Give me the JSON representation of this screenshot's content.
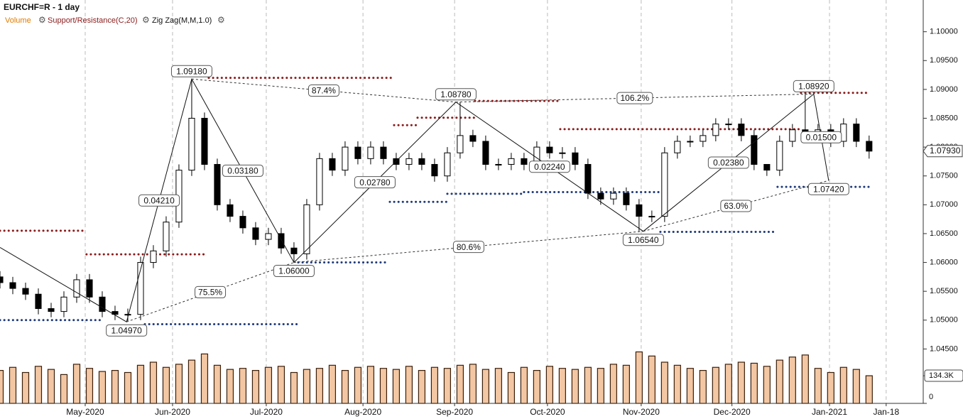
{
  "chart_data": {
    "type": "candlestick",
    "title": "EURCHF=R - 1 day",
    "indicators": [
      "Volume",
      "Support/Resistance(C,20)",
      "Zig Zag(M,M,1.0)"
    ],
    "x": [
      0,
      3,
      6,
      9,
      12,
      15,
      18,
      21,
      24,
      27,
      30,
      33,
      36,
      39,
      42,
      45,
      48,
      51,
      54,
      57,
      60,
      63,
      66,
      69,
      72,
      75,
      78,
      81,
      84,
      87,
      90,
      93,
      96,
      99,
      102,
      105,
      108,
      111,
      114,
      117,
      120,
      123,
      126,
      129,
      132,
      135,
      138,
      141,
      144,
      147,
      150,
      153,
      156,
      159,
      162,
      165,
      168,
      171,
      174,
      177,
      180,
      183,
      186,
      189,
      192,
      195,
      198,
      201,
      204
    ],
    "open": [
      1.0575,
      1.0565,
      1.0555,
      1.0545,
      1.052,
      1.0515,
      1.054,
      1.057,
      1.054,
      1.0515,
      1.051,
      1.051,
      1.06,
      1.062,
      1.067,
      1.076,
      1.085,
      1.077,
      1.07,
      1.068,
      1.066,
      1.064,
      1.065,
      1.0625,
      1.0615,
      1.07,
      1.078,
      1.076,
      1.08,
      1.078,
      1.08,
      1.078,
      1.077,
      1.078,
      1.077,
      1.075,
      1.079,
      1.082,
      1.081,
      1.077,
      1.077,
      1.078,
      1.077,
      1.08,
      1.079,
      1.079,
      1.077,
      1.072,
      1.071,
      1.072,
      1.07,
      1.068,
      1.068,
      1.079,
      1.081,
      1.081,
      1.082,
      1.084,
      1.084,
      1.082,
      1.077,
      1.076,
      1.081,
      1.083,
      1.082,
      1.083,
      1.081,
      1.084,
      1.081
    ],
    "high": [
      1.0585,
      1.0575,
      1.0565,
      1.0555,
      1.053,
      1.055,
      1.058,
      1.058,
      1.055,
      1.0525,
      1.052,
      1.061,
      1.063,
      1.068,
      1.077,
      1.0918,
      1.086,
      1.078,
      1.071,
      1.069,
      1.067,
      1.066,
      1.066,
      1.0635,
      1.071,
      1.079,
      1.079,
      1.081,
      1.081,
      1.081,
      1.081,
      1.079,
      1.079,
      1.079,
      1.078,
      1.08,
      1.0878,
      1.083,
      1.082,
      1.078,
      1.079,
      1.079,
      1.081,
      1.081,
      1.08,
      1.08,
      1.078,
      1.073,
      1.073,
      1.073,
      1.071,
      1.069,
      1.08,
      1.082,
      1.082,
      1.083,
      1.085,
      1.085,
      1.085,
      1.083,
      1.077,
      1.082,
      1.084,
      1.0892,
      1.084,
      1.084,
      1.085,
      1.085,
      1.082
    ],
    "low": [
      1.0555,
      1.0545,
      1.0535,
      1.051,
      1.0505,
      1.0505,
      1.053,
      1.053,
      1.0505,
      1.05,
      1.0497,
      1.05,
      1.059,
      1.061,
      1.066,
      1.075,
      1.076,
      1.069,
      1.067,
      1.065,
      1.063,
      1.063,
      1.0615,
      1.06,
      1.0605,
      1.069,
      1.075,
      1.075,
      1.077,
      1.077,
      1.077,
      1.076,
      1.076,
      1.076,
      1.074,
      1.074,
      1.078,
      1.08,
      1.076,
      1.076,
      1.076,
      1.076,
      1.076,
      1.078,
      1.078,
      1.076,
      1.071,
      1.07,
      1.07,
      1.069,
      1.0654,
      1.067,
      1.067,
      1.078,
      1.08,
      1.08,
      1.081,
      1.083,
      1.081,
      1.076,
      1.075,
      1.075,
      1.08,
      1.081,
      1.081,
      1.08,
      1.08,
      1.08,
      1.078
    ],
    "close": [
      1.0565,
      1.0555,
      1.0545,
      1.052,
      1.0515,
      1.054,
      1.057,
      1.054,
      1.0515,
      1.051,
      1.051,
      1.06,
      1.062,
      1.067,
      1.076,
      1.085,
      1.077,
      1.07,
      1.068,
      1.066,
      1.064,
      1.065,
      1.0625,
      1.0615,
      1.07,
      1.078,
      1.076,
      1.08,
      1.078,
      1.08,
      1.078,
      1.077,
      1.078,
      1.077,
      1.075,
      1.079,
      1.082,
      1.081,
      1.077,
      1.077,
      1.078,
      1.077,
      1.08,
      1.079,
      1.079,
      1.077,
      1.072,
      1.071,
      1.072,
      1.07,
      1.068,
      1.068,
      1.079,
      1.081,
      1.081,
      1.082,
      1.084,
      1.084,
      1.082,
      1.077,
      1.076,
      1.081,
      1.083,
      1.082,
      1.083,
      1.081,
      1.084,
      1.081,
      1.0793
    ],
    "volume": [
      160000,
      175000,
      150000,
      180000,
      165000,
      140000,
      190000,
      170000,
      155000,
      160000,
      150000,
      185000,
      200000,
      175000,
      190000,
      210000,
      240000,
      185000,
      165000,
      170000,
      160000,
      175000,
      180000,
      150000,
      165000,
      170000,
      185000,
      160000,
      175000,
      180000,
      170000,
      165000,
      180000,
      160000,
      175000,
      170000,
      185000,
      190000,
      165000,
      170000,
      150000,
      175000,
      160000,
      180000,
      170000,
      165000,
      175000,
      170000,
      190000,
      185000,
      250000,
      230000,
      200000,
      185000,
      170000,
      160000,
      175000,
      190000,
      200000,
      195000,
      180000,
      210000,
      225000,
      235000,
      170000,
      150000,
      175000,
      165000,
      134300
    ],
    "xlim": [
      0,
      216.7
    ],
    "xticks": [
      {
        "value": 20,
        "label": "May-2020"
      },
      {
        "value": 40.5,
        "label": "Jun-2020"
      },
      {
        "value": 62.5,
        "label": "Jul-2020"
      },
      {
        "value": 85.2,
        "label": "Aug-2020"
      },
      {
        "value": 106.7,
        "label": "Sep-2020"
      },
      {
        "value": 128.5,
        "label": "Oct-2020"
      },
      {
        "value": 150.5,
        "label": "Nov-2020"
      },
      {
        "value": 171.8,
        "label": "Dec-2020"
      },
      {
        "value": 194.7,
        "label": "Jan-2021"
      },
      {
        "value": 208,
        "label": "Jan-18"
      }
    ],
    "ylim": [
      1.04,
      1.1055
    ],
    "yticks": [
      {
        "value": 1.045,
        "label": "1.04500"
      },
      {
        "value": 1.05,
        "label": "1.05000"
      },
      {
        "value": 1.055,
        "label": "1.05500"
      },
      {
        "value": 1.06,
        "label": "1.06000"
      },
      {
        "value": 1.065,
        "label": "1.06500"
      },
      {
        "value": 1.07,
        "label": "1.07000"
      },
      {
        "value": 1.075,
        "label": "1.07500"
      },
      {
        "value": 1.08,
        "label": "1.08000"
      },
      {
        "value": 1.085,
        "label": "1.08500"
      },
      {
        "value": 1.09,
        "label": "1.09000"
      },
      {
        "value": 1.095,
        "label": "1.09500"
      },
      {
        "value": 1.1,
        "label": "1.10000"
      }
    ],
    "vlim": [
      0,
      300000
    ],
    "vticks": [
      0,
      {
        "value": 134300,
        "label": "134.3K"
      }
    ],
    "last_price": {
      "value": 1.0793,
      "label": "1.07930"
    },
    "grid": true,
    "zigzag": {
      "x": [
        0,
        29.7,
        45,
        69,
        107,
        151,
        191,
        194.5
      ],
      "values": [
        1.0626,
        1.0497,
        1.0918,
        1.06,
        1.0878,
        1.0654,
        1.0892,
        1.0742
      ],
      "value_labels": [
        null,
        "1.04970",
        "1.09180",
        "1.06000",
        "1.08780",
        "1.06540",
        "1.08920",
        "1.07420"
      ],
      "swing_values": [
        null,
        0.0421,
        0.0318,
        0.0278,
        0.0224,
        0.0238,
        0.015
      ],
      "swing_labels": [
        null,
        "0.04210",
        "0.03180",
        "0.02780",
        "0.02240",
        "0.02380",
        "0.01500"
      ],
      "retracement_values": [
        null,
        75.5,
        87.4,
        80.6,
        106.2,
        63.0
      ],
      "retracement_labels": [
        null,
        "75.5%",
        "87.4%",
        "80.6%",
        "106.2%",
        "63.0%"
      ]
    },
    "resistance": [
      {
        "x": [
          0,
          20
        ],
        "value": 1.0655
      },
      {
        "x": [
          20.3,
          48.3
        ],
        "value": 1.0614
      },
      {
        "x": [
          49,
          92
        ],
        "value": 1.092
      },
      {
        "x": [
          92.5,
          98
        ],
        "value": 1.0838
      },
      {
        "x": [
          98,
          111.5
        ],
        "value": 1.0851
      },
      {
        "x": [
          111.5,
          131
        ],
        "value": 1.088
      },
      {
        "x": [
          131.5,
          188
        ],
        "value": 1.0831
      },
      {
        "x": [
          188,
          204
        ],
        "value": 1.0894
      }
    ],
    "support": [
      {
        "x": [
          0,
          24
        ],
        "value": 1.05
      },
      {
        "x": [
          34,
          70
        ],
        "value": 1.0493
      },
      {
        "x": [
          70,
          91
        ],
        "value": 1.06
      },
      {
        "x": [
          91.5,
          105
        ],
        "value": 1.0705
      },
      {
        "x": [
          105,
          123
        ],
        "value": 1.0719
      },
      {
        "x": [
          123,
          155
        ],
        "value": 1.0722
      },
      {
        "x": [
          155,
          182
        ],
        "value": 1.0653
      },
      {
        "x": [
          182.5,
          204
        ],
        "value": 1.0731
      }
    ]
  }
}
